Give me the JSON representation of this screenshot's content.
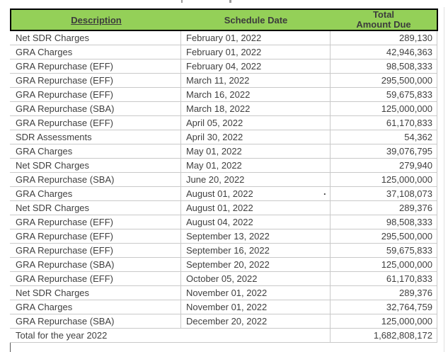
{
  "colors": {
    "header_bg": "#94d058",
    "header_border": "#000000",
    "header_text": "#3c3c3c",
    "body_text": "#3f3f3f",
    "grid_line": "#c9c9c9",
    "outer_left_border": "#5a5a5a"
  },
  "table": {
    "columns": [
      {
        "label": "Description"
      },
      {
        "label": "Schedule Date"
      },
      {
        "label": "Total",
        "label_line2": "Amount Due"
      }
    ],
    "rows": [
      {
        "description": "Net SDR Charges",
        "date": "February 01, 2022",
        "amount": "289,130"
      },
      {
        "description": "GRA Charges",
        "date": "February 01, 2022",
        "amount": "42,946,363"
      },
      {
        "description": "GRA Repurchase (EFF)",
        "date": "February 04, 2022",
        "amount": "98,508,333"
      },
      {
        "description": "GRA Repurchase (EFF)",
        "date": "March 11, 2022",
        "amount": "295,500,000"
      },
      {
        "description": "GRA Repurchase (EFF)",
        "date": "March 16, 2022",
        "amount": "59,675,833"
      },
      {
        "description": "GRA Repurchase (SBA)",
        "date": "March 18, 2022",
        "amount": "125,000,000"
      },
      {
        "description": "GRA Repurchase (EFF)",
        "date": "April 05, 2022",
        "amount": "61,170,833"
      },
      {
        "description": "SDR Assessments",
        "date": "April 30, 2022",
        "amount": "54,362"
      },
      {
        "description": "GRA Charges",
        "date": "May 01, 2022",
        "amount": "39,076,795"
      },
      {
        "description": "Net SDR Charges",
        "date": "May 01, 2022",
        "amount": "279,940"
      },
      {
        "description": "GRA Repurchase (SBA)",
        "date": "June 20, 2022",
        "amount": "125,000,000"
      },
      {
        "description": "GRA Charges",
        "date": "August 01, 2022",
        "amount": "37,108,073"
      },
      {
        "description": "Net SDR Charges",
        "date": "August 01, 2022",
        "amount": "289,376"
      },
      {
        "description": "GRA Repurchase (EFF)",
        "date": "August 04, 2022",
        "amount": "98,508,333"
      },
      {
        "description": "GRA Repurchase (EFF)",
        "date": "September 13, 2022",
        "amount": "295,500,000"
      },
      {
        "description": "GRA Repurchase (EFF)",
        "date": "September 16, 2022",
        "amount": "59,675,833"
      },
      {
        "description": "GRA Repurchase (SBA)",
        "date": "September 20, 2022",
        "amount": "125,000,000"
      },
      {
        "description": "GRA Repurchase (EFF)",
        "date": "October 05, 2022",
        "amount": "61,170,833"
      },
      {
        "description": "Net SDR Charges",
        "date": "November 01, 2022",
        "amount": "289,376"
      },
      {
        "description": "GRA Charges",
        "date": "November 01, 2022",
        "amount": "32,764,759"
      },
      {
        "description": "GRA Repurchase (SBA)",
        "date": "December 20, 2022",
        "amount": "125,000,000"
      }
    ],
    "total_row": {
      "label": "Total for the year 2022",
      "amount": "1,682,808,172"
    }
  },
  "artifacts": {
    "stray_dot": "."
  }
}
